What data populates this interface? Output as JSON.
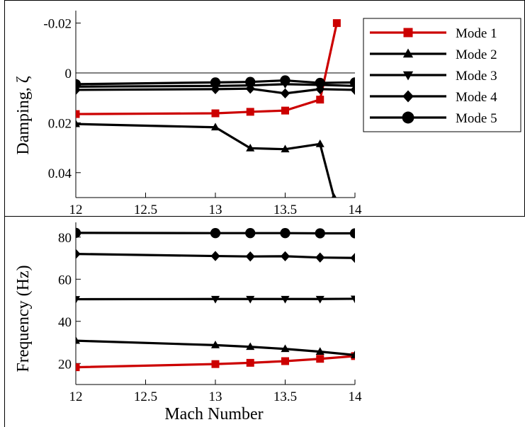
{
  "chart_data": [
    {
      "type": "line",
      "title": "",
      "xlabel": "",
      "ylabel": "Damping, ζ",
      "xlim": [
        12,
        14
      ],
      "ylim": [
        -0.025,
        0.05
      ],
      "y_axis_inverted": true,
      "x_ticks": [
        12,
        12.5,
        13,
        13.5,
        14
      ],
      "x_tick_labels": [
        "12",
        "12.5",
        "13",
        "13.5",
        "14"
      ],
      "y_ticks": [
        -0.02,
        0,
        0.02,
        0.04
      ],
      "y_tick_labels": [
        "-0.02",
        "0",
        "0.02",
        "0.04"
      ],
      "reference_line_y": 0,
      "grid": false,
      "legend_position": "top-right",
      "series": [
        {
          "name": "Mode 1",
          "color": "#cc0000",
          "marker": "square",
          "x": [
            12,
            13,
            13.25,
            13.5,
            13.75,
            13.87
          ],
          "y": [
            0.0165,
            0.0162,
            0.0156,
            0.0151,
            0.0107,
            -0.02
          ]
        },
        {
          "name": "Mode 2",
          "color": "#000000",
          "marker": "triangle-up",
          "x": [
            12,
            13,
            13.25,
            13.5,
            13.75,
            13.85
          ],
          "y": [
            0.0205,
            0.0218,
            0.0302,
            0.0306,
            0.0285,
            0.05
          ]
        },
        {
          "name": "Mode 3",
          "color": "#000000",
          "marker": "triangle-down",
          "x": [
            12,
            13,
            13.25,
            13.5,
            13.75,
            14
          ],
          "y": [
            0.0055,
            0.0052,
            0.005,
            0.0045,
            0.0048,
            0.0052
          ]
        },
        {
          "name": "Mode 4",
          "color": "#000000",
          "marker": "diamond",
          "x": [
            12,
            13,
            13.25,
            13.5,
            13.75,
            14
          ],
          "y": [
            0.0068,
            0.0065,
            0.0063,
            0.0082,
            0.0065,
            0.0068
          ]
        },
        {
          "name": "Mode 5",
          "color": "#000000",
          "marker": "circle",
          "x": [
            12,
            13,
            13.25,
            13.5,
            13.75,
            14
          ],
          "y": [
            0.0045,
            0.0038,
            0.0036,
            0.003,
            0.004,
            0.0038
          ]
        }
      ]
    },
    {
      "type": "line",
      "title": "",
      "xlabel": "Mach Number",
      "ylabel": "Frequency (Hz)",
      "xlim": [
        12,
        14
      ],
      "ylim": [
        10,
        87
      ],
      "x_ticks": [
        12,
        12.5,
        13,
        13.5,
        14
      ],
      "x_tick_labels": [
        "12",
        "12.5",
        "13",
        "13.5",
        "14"
      ],
      "y_ticks": [
        20,
        40,
        60,
        80
      ],
      "y_tick_labels": [
        "20",
        "40",
        "60",
        "80"
      ],
      "grid": false,
      "series": [
        {
          "name": "Mode 1",
          "color": "#cc0000",
          "marker": "square",
          "x": [
            12,
            13,
            13.25,
            13.5,
            13.75,
            14
          ],
          "y": [
            18.2,
            19.7,
            20.3,
            21.1,
            22.2,
            23.5
          ]
        },
        {
          "name": "Mode 2",
          "color": "#000000",
          "marker": "triangle-up",
          "x": [
            12,
            13,
            13.25,
            13.5,
            13.75,
            14
          ],
          "y": [
            30.8,
            28.7,
            27.9,
            26.9,
            25.6,
            24.0
          ]
        },
        {
          "name": "Mode 3",
          "color": "#000000",
          "marker": "triangle-down",
          "x": [
            12,
            13,
            13.25,
            13.5,
            13.75,
            14
          ],
          "y": [
            50.5,
            50.6,
            50.6,
            50.6,
            50.6,
            50.7
          ]
        },
        {
          "name": "Mode 4",
          "color": "#000000",
          "marker": "diamond",
          "x": [
            12,
            13,
            13.25,
            13.5,
            13.75,
            14
          ],
          "y": [
            72.0,
            71.0,
            70.8,
            70.9,
            70.3,
            70.1
          ]
        },
        {
          "name": "Mode 5",
          "color": "#000000",
          "marker": "circle",
          "x": [
            12,
            13,
            13.25,
            13.5,
            13.75,
            14
          ],
          "y": [
            82.0,
            81.9,
            81.9,
            81.9,
            81.8,
            81.8
          ]
        }
      ]
    }
  ]
}
